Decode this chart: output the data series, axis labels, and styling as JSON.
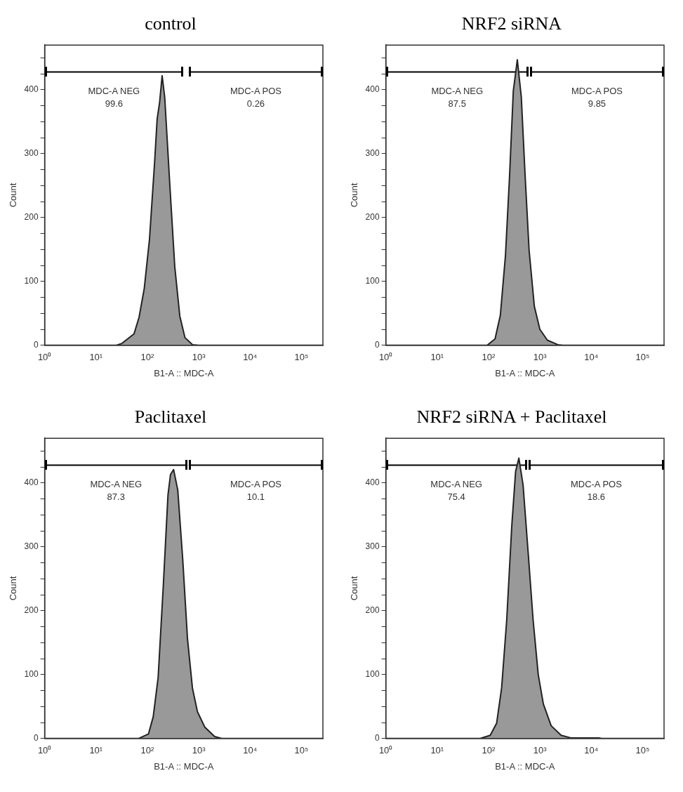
{
  "chart_data": [
    {
      "type": "area",
      "title": "control",
      "xlabel": "B1-A :: MDC-A",
      "ylabel": "Count",
      "log": "x",
      "xlim": [
        1,
        262144
      ],
      "ylim": [
        0,
        470
      ],
      "xticks": [
        {
          "value": 1,
          "label": "10⁰"
        },
        {
          "value": 10,
          "label": "10¹"
        },
        {
          "value": 100,
          "label": "10²"
        },
        {
          "value": 1000,
          "label": "10³"
        },
        {
          "value": 10000,
          "label": "10⁴"
        },
        {
          "value": 100000,
          "label": "10⁵"
        }
      ],
      "yticks": [
        0,
        {
          "value": 25,
          "label": null
        },
        {
          "value": 50,
          "label": null
        },
        {
          "value": 75,
          "label": null
        },
        100,
        {
          "value": 125,
          "label": null
        },
        {
          "value": 150,
          "label": null
        },
        {
          "value": 175,
          "label": null
        },
        200,
        {
          "value": 225,
          "label": null
        },
        {
          "value": 250,
          "label": null
        },
        {
          "value": 275,
          "label": null
        },
        300,
        {
          "value": 325,
          "label": null
        },
        {
          "value": 350,
          "label": null
        },
        {
          "value": 375,
          "label": null
        },
        400,
        {
          "value": 425,
          "label": null
        },
        {
          "value": 450,
          "label": null
        }
      ],
      "series": [
        {
          "color": "#999999",
          "x": [
            1,
            25,
            32,
            55,
            69,
            87,
            110,
            138,
            155,
            173,
            194,
            218,
            274,
            342,
            428,
            540,
            760,
            1000,
            262144
          ],
          "values": [
            0,
            0,
            3,
            18,
            44,
            89,
            166,
            285,
            354,
            380,
            422,
            388,
            251,
            123,
            46,
            12,
            1,
            0,
            0
          ]
        },
        {
          "type": "line",
          "name": "MDC-A NEG",
          "color": "#000000",
          "x": [
            1,
            500
          ],
          "values": [
            428,
            428
          ]
        },
        {
          "type": "line",
          "name": "MDC-A POS",
          "color": "#000000",
          "x": [
            640,
            262144
          ],
          "values": [
            428,
            428
          ]
        }
      ],
      "annotations": [
        "99.6",
        "0.26"
      ]
    },
    {
      "type": "area",
      "title": "NRF2 siRNA",
      "xlabel": "B1-A :: MDC-A",
      "ylabel": "Count",
      "log": "x",
      "xlim": [
        1,
        262144
      ],
      "ylim": [
        0,
        470
      ],
      "xticks": [
        {
          "value": 1,
          "label": "10⁰"
        },
        {
          "value": 10,
          "label": "10¹"
        },
        {
          "value": 100,
          "label": "10²"
        },
        {
          "value": 1000,
          "label": "10³"
        },
        {
          "value": 10000,
          "label": "10⁴"
        },
        {
          "value": 100000,
          "label": "10⁵"
        }
      ],
      "yticks": [
        0,
        {
          "value": 25,
          "label": null
        },
        {
          "value": 50,
          "label": null
        },
        {
          "value": 75,
          "label": null
        },
        100,
        {
          "value": 125,
          "label": null
        },
        {
          "value": 150,
          "label": null
        },
        {
          "value": 175,
          "label": null
        },
        200,
        {
          "value": 225,
          "label": null
        },
        {
          "value": 250,
          "label": null
        },
        {
          "value": 275,
          "label": null
        },
        300,
        {
          "value": 325,
          "label": null
        },
        {
          "value": 350,
          "label": null
        },
        {
          "value": 375,
          "label": null
        },
        400,
        {
          "value": 425,
          "label": null
        },
        {
          "value": 450,
          "label": null
        }
      ],
      "series": [
        {
          "color": "#999999",
          "x": [
            1,
            94,
            134,
            170,
            214,
            257,
            304,
            364,
            435,
            517,
            617,
            781,
            1000,
            1400,
            2240,
            2800,
            262144
          ],
          "values": [
            0,
            0,
            10,
            47,
            141,
            265,
            398,
            447,
            389,
            265,
            149,
            61,
            25,
            8,
            1,
            0,
            0
          ]
        },
        {
          "type": "line",
          "name": "MDC-A NEG",
          "color": "#000000",
          "x": [
            1,
            600
          ],
          "values": [
            428,
            428
          ]
        },
        {
          "type": "line",
          "name": "MDC-A POS",
          "color": "#000000",
          "x": [
            640,
            262144
          ],
          "values": [
            428,
            428
          ]
        }
      ],
      "annotations": [
        "87.5",
        "9.85"
      ]
    },
    {
      "type": "area",
      "title": "Paclitaxel",
      "xlabel": "B1-A :: MDC-A",
      "ylabel": "Count",
      "log": "x",
      "xlim": [
        1,
        262144
      ],
      "ylim": [
        0,
        470
      ],
      "xticks": [
        {
          "value": 1,
          "label": "10⁰"
        },
        {
          "value": 10,
          "label": "10¹"
        },
        {
          "value": 100,
          "label": "10²"
        },
        {
          "value": 1000,
          "label": "10³"
        },
        {
          "value": 10000,
          "label": "10⁴"
        },
        {
          "value": 100000,
          "label": "10⁵"
        }
      ],
      "yticks": [
        0,
        {
          "value": 25,
          "label": null
        },
        {
          "value": 50,
          "label": null
        },
        {
          "value": 75,
          "label": null
        },
        100,
        {
          "value": 125,
          "label": null
        },
        {
          "value": 150,
          "label": null
        },
        {
          "value": 175,
          "label": null
        },
        200,
        {
          "value": 225,
          "label": null
        },
        {
          "value": 250,
          "label": null
        },
        {
          "value": 275,
          "label": null
        },
        300,
        {
          "value": 325,
          "label": null
        },
        {
          "value": 350,
          "label": null
        },
        {
          "value": 375,
          "label": null
        },
        400,
        {
          "value": 425,
          "label": null
        },
        {
          "value": 450,
          "label": null
        }
      ],
      "series": [
        {
          "color": "#999999",
          "x": [
            1,
            67,
            105,
            130,
            162,
            204,
            252,
            282,
            324,
            391,
            490,
            605,
            755,
            945,
            1310,
            2040,
            2800,
            262144
          ],
          "values": [
            0,
            0,
            7,
            34,
            95,
            238,
            381,
            413,
            421,
            389,
            279,
            156,
            79,
            42,
            18,
            3,
            0,
            0
          ]
        },
        {
          "type": "line",
          "name": "MDC-A NEG",
          "color": "#000000",
          "x": [
            1,
            600
          ],
          "values": [
            428,
            428
          ]
        },
        {
          "type": "line",
          "name": "MDC-A POS",
          "color": "#000000",
          "x": [
            640,
            262144
          ],
          "values": [
            428,
            428
          ]
        }
      ],
      "annotations": [
        "87.3",
        "10.1"
      ]
    },
    {
      "type": "area",
      "title": "NRF2 siRNA + Paclitaxel",
      "xlabel": "B1-A :: MDC-A",
      "ylabel": "Count",
      "log": "x",
      "xlim": [
        1,
        262144
      ],
      "ylim": [
        0,
        470
      ],
      "xticks": [
        {
          "value": 1,
          "label": "10⁰"
        },
        {
          "value": 10,
          "label": "10¹"
        },
        {
          "value": 100,
          "label": "10²"
        },
        {
          "value": 1000,
          "label": "10³"
        },
        {
          "value": 10000,
          "label": "10⁴"
        },
        {
          "value": 100000,
          "label": "10⁵"
        }
      ],
      "yticks": [
        0,
        {
          "value": 25,
          "label": null
        },
        {
          "value": 50,
          "label": null
        },
        {
          "value": 75,
          "label": null
        },
        100,
        {
          "value": 125,
          "label": null
        },
        {
          "value": 150,
          "label": null
        },
        {
          "value": 175,
          "label": null
        },
        200,
        {
          "value": 225,
          "label": null
        },
        {
          "value": 250,
          "label": null
        },
        {
          "value": 275,
          "label": null
        },
        300,
        {
          "value": 325,
          "label": null
        },
        {
          "value": 350,
          "label": null
        },
        {
          "value": 375,
          "label": null
        },
        400,
        {
          "value": 425,
          "label": null
        },
        {
          "value": 450,
          "label": null
        }
      ],
      "series": [
        {
          "color": "#999999",
          "x": [
            1,
            69,
            108,
            144,
            180,
            226,
            284,
            337,
            390,
            471,
            592,
            740,
            930,
            1170,
            1660,
            2600,
            4000,
            14000,
            16000,
            262144
          ],
          "values": [
            0,
            0,
            5,
            24,
            79,
            185,
            333,
            418,
            439,
            397,
            291,
            185,
            100,
            54,
            20,
            5,
            1,
            1,
            0,
            0
          ]
        },
        {
          "type": "line",
          "name": "MDC-A NEG",
          "color": "#000000",
          "x": [
            1,
            560
          ],
          "values": [
            428,
            428
          ]
        },
        {
          "type": "line",
          "name": "MDC-A POS",
          "color": "#000000",
          "x": [
            600,
            262144
          ],
          "values": [
            428,
            428
          ]
        }
      ],
      "annotations": [
        "75.4",
        "18.6"
      ]
    }
  ]
}
